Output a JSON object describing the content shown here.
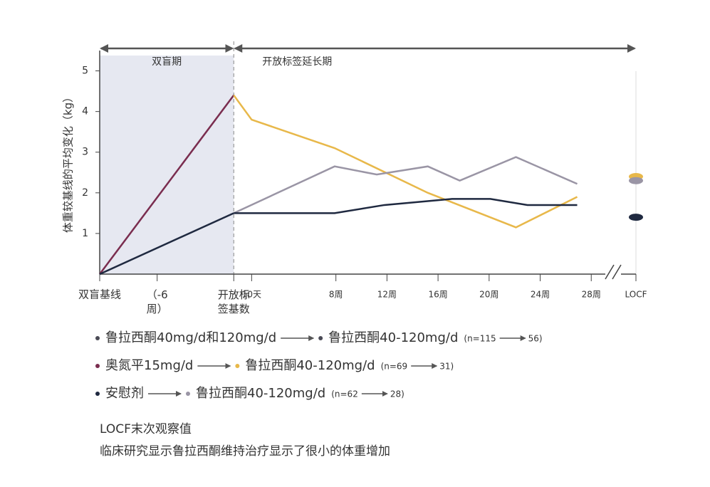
{
  "chart_data": {
    "type": "line",
    "y_label": "体重较基线的平均变化（kg）",
    "periods": [
      {
        "label": "双盲期",
        "range": [
          -10.5,
          0
        ]
      },
      {
        "label": "开放标签延长期",
        "range": [
          0,
          31.5
        ]
      }
    ],
    "xlim": [
      -10.5,
      31.5
    ],
    "xticks": [
      {
        "value": -10.5,
        "label": "双盲基线"
      },
      {
        "value": -6,
        "label": "（-6周）"
      },
      {
        "value": 0,
        "label": "开放标签基数"
      },
      {
        "value": 1.4,
        "label": "10天"
      },
      {
        "value": 8,
        "label": "8周"
      },
      {
        "value": 12,
        "label": "12周"
      },
      {
        "value": 16,
        "label": "16周"
      },
      {
        "value": 20,
        "label": "20周"
      },
      {
        "value": 24,
        "label": "24周"
      },
      {
        "value": 28,
        "label": "28周"
      },
      {
        "value": 31.5,
        "label": "LOCF"
      }
    ],
    "ylim": [
      0,
      5.5
    ],
    "yticks": [
      1,
      2,
      3,
      4,
      5
    ],
    "series": [
      {
        "color": "#7a2d4f",
        "x": [
          -10.5,
          0
        ],
        "values": [
          0,
          4.4
        ]
      },
      {
        "color": "#1f2940",
        "x": [
          -10.5,
          0
        ],
        "values": [
          0,
          1.5
        ]
      },
      {
        "color": "#e8b84a",
        "x": [
          0,
          1.4,
          7.9,
          15.2,
          22.1,
          26.9
        ],
        "values": [
          4.4,
          3.8,
          3.1,
          2.0,
          1.15,
          1.9
        ],
        "locf": 2.4
      },
      {
        "color": "#9a95a5",
        "x": [
          0,
          7.9,
          11.2,
          15.2,
          17.7,
          22.1,
          26.9
        ],
        "values": [
          1.5,
          2.65,
          2.45,
          2.65,
          2.3,
          2.88,
          2.22
        ],
        "locf": 2.3
      },
      {
        "color": "#1f2940",
        "x": [
          0,
          7.9,
          11.8,
          17.1,
          20.1,
          23,
          26.9
        ],
        "values": [
          1.5,
          1.5,
          1.7,
          1.85,
          1.85,
          1.7,
          1.7
        ],
        "locf": 1.4
      }
    ],
    "legend_rows": [
      {
        "from": "鲁拉西酮40mg/d和120mg/d",
        "from_color": "#4a4a55",
        "to": "鲁拉西酮40-120mg/d",
        "to_color": "#4a4a55",
        "n_start": "(n=115",
        "n_end": "56)"
      },
      {
        "from": "奥氮平15mg/d",
        "from_color": "#7a2d4f",
        "to": "鲁拉西酮40-120mg/d",
        "to_color": "#e8b84a",
        "n_start": "(n=69",
        "n_end": "31)"
      },
      {
        "from": "安慰剂",
        "from_color": "#1f2940",
        "to": "鲁拉西酮40-120mg/d",
        "to_color": "#9a95a5",
        "n_start": "(n=62",
        "n_end": "28)"
      }
    ],
    "notes": [
      "LOCF末次观察值",
      "临床研究显示鲁拉西酮维持治疗显示了很小的体重增加"
    ]
  }
}
